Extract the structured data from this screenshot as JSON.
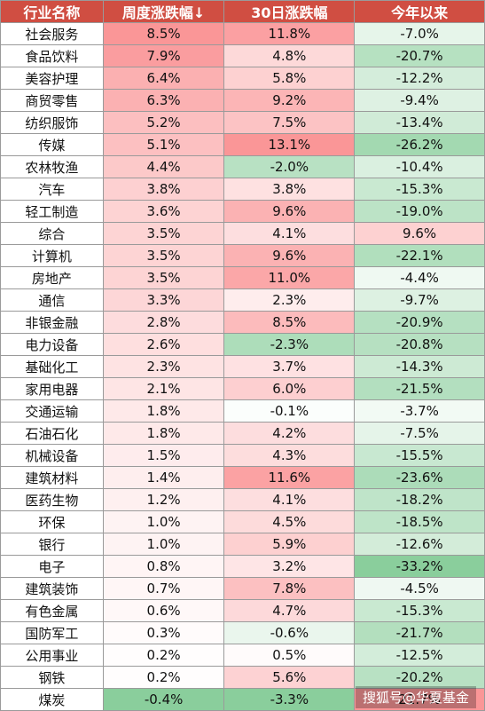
{
  "colors": {
    "header_bg": "#d04e42",
    "header_text": "#ffffff",
    "positive": "#f8696b",
    "negative": "#63be7b",
    "neutral": "#ffffff"
  },
  "table": {
    "headers": [
      "行业名称",
      "周度涨跌幅↓",
      "30日涨跌幅",
      "今年以来"
    ],
    "rows": [
      [
        "社会服务",
        "8.5%",
        "11.8%",
        "-7.0%"
      ],
      [
        "食品饮料",
        "7.9%",
        "4.8%",
        "-20.7%"
      ],
      [
        "美容护理",
        "6.4%",
        "5.8%",
        "-12.2%"
      ],
      [
        "商贸零售",
        "6.3%",
        "9.2%",
        "-9.4%"
      ],
      [
        "纺织服饰",
        "5.2%",
        "7.5%",
        "-13.4%"
      ],
      [
        "传媒",
        "5.1%",
        "13.1%",
        "-26.2%"
      ],
      [
        "农林牧渔",
        "4.4%",
        "-2.0%",
        "-10.4%"
      ],
      [
        "汽车",
        "3.8%",
        "3.8%",
        "-15.3%"
      ],
      [
        "轻工制造",
        "3.6%",
        "9.6%",
        "-19.0%"
      ],
      [
        "综合",
        "3.5%",
        "4.1%",
        "9.6%"
      ],
      [
        "计算机",
        "3.5%",
        "9.6%",
        "-22.1%"
      ],
      [
        "房地产",
        "3.5%",
        "11.0%",
        "-4.4%"
      ],
      [
        "通信",
        "3.3%",
        "2.3%",
        "-9.7%"
      ],
      [
        "非银金融",
        "2.8%",
        "8.5%",
        "-20.9%"
      ],
      [
        "电力设备",
        "2.6%",
        "-2.3%",
        "-20.8%"
      ],
      [
        "基础化工",
        "2.3%",
        "3.7%",
        "-14.3%"
      ],
      [
        "家用电器",
        "2.1%",
        "6.0%",
        "-21.5%"
      ],
      [
        "交通运输",
        "1.8%",
        "-0.1%",
        "-3.7%"
      ],
      [
        "石油石化",
        "1.8%",
        "4.2%",
        "-7.5%"
      ],
      [
        "机械设备",
        "1.5%",
        "4.3%",
        "-15.5%"
      ],
      [
        "建筑材料",
        "1.4%",
        "11.6%",
        "-23.6%"
      ],
      [
        "医药生物",
        "1.2%",
        "4.1%",
        "-18.2%"
      ],
      [
        "环保",
        "1.0%",
        "4.5%",
        "-18.5%"
      ],
      [
        "银行",
        "1.0%",
        "5.9%",
        "-12.6%"
      ],
      [
        "电子",
        "0.8%",
        "3.2%",
        "-33.2%"
      ],
      [
        "建筑装饰",
        "0.7%",
        "7.8%",
        "-4.5%"
      ],
      [
        "有色金属",
        "0.6%",
        "4.7%",
        "-15.3%"
      ],
      [
        "国防军工",
        "0.3%",
        "-0.6%",
        "-21.7%"
      ],
      [
        "公用事业",
        "0.2%",
        "0.5%",
        "-12.5%"
      ],
      [
        "钢铁",
        "0.2%",
        "5.6%",
        "-20.2%"
      ],
      [
        "煤炭",
        "-0.4%",
        "-3.3%",
        "21.7%"
      ]
    ]
  },
  "watermark": "搜狐号@华夏基金"
}
